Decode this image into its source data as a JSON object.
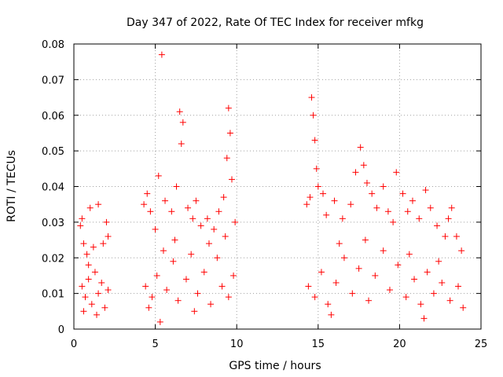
{
  "chart_data": {
    "type": "scatter",
    "title": "Day 347 of 2022, Rate Of TEC Index for receiver mfkg",
    "xlabel": "GPS time / hours",
    "ylabel": "ROTI / TECUs",
    "xlim": [
      0,
      25
    ],
    "ylim": [
      0,
      0.08
    ],
    "xticks": [
      "0",
      "5",
      "10",
      "15",
      "20",
      "25"
    ],
    "yticks": [
      "0",
      "0.01",
      "0.02",
      "0.03",
      "0.04",
      "0.05",
      "0.06",
      "0.07",
      "0.08"
    ],
    "grid": true,
    "marker": "+",
    "colors": {
      "points": "#ff0000"
    },
    "series": [
      {
        "values": [
          [
            0.4,
            0.029
          ],
          [
            0.5,
            0.031
          ],
          [
            0.6,
            0.024
          ],
          [
            0.8,
            0.021
          ],
          [
            0.9,
            0.018
          ],
          [
            1.0,
            0.034
          ],
          [
            1.2,
            0.023
          ],
          [
            1.5,
            0.035
          ],
          [
            1.8,
            0.024
          ],
          [
            2.0,
            0.03
          ],
          [
            2.1,
            0.026
          ],
          [
            0.5,
            0.012
          ],
          [
            0.7,
            0.009
          ],
          [
            0.9,
            0.014
          ],
          [
            1.1,
            0.007
          ],
          [
            1.3,
            0.016
          ],
          [
            1.5,
            0.01
          ],
          [
            1.7,
            0.013
          ],
          [
            1.9,
            0.006
          ],
          [
            2.1,
            0.011
          ],
          [
            0.6,
            0.005
          ],
          [
            1.4,
            0.004
          ],
          [
            4.3,
            0.035
          ],
          [
            4.5,
            0.038
          ],
          [
            4.7,
            0.033
          ],
          [
            5.0,
            0.028
          ],
          [
            5.2,
            0.043
          ],
          [
            5.4,
            0.077
          ],
          [
            5.6,
            0.036
          ],
          [
            6.0,
            0.033
          ],
          [
            6.3,
            0.04
          ],
          [
            6.5,
            0.061
          ],
          [
            6.6,
            0.052
          ],
          [
            6.7,
            0.058
          ],
          [
            7.0,
            0.034
          ],
          [
            7.3,
            0.031
          ],
          [
            7.5,
            0.036
          ],
          [
            7.8,
            0.029
          ],
          [
            8.2,
            0.031
          ],
          [
            8.6,
            0.028
          ],
          [
            8.9,
            0.033
          ],
          [
            9.2,
            0.037
          ],
          [
            9.4,
            0.048
          ],
          [
            9.5,
            0.062
          ],
          [
            9.6,
            0.055
          ],
          [
            9.7,
            0.042
          ],
          [
            9.9,
            0.03
          ],
          [
            4.4,
            0.012
          ],
          [
            4.8,
            0.009
          ],
          [
            5.1,
            0.015
          ],
          [
            5.3,
            0.002
          ],
          [
            5.7,
            0.011
          ],
          [
            6.1,
            0.019
          ],
          [
            6.4,
            0.008
          ],
          [
            6.9,
            0.014
          ],
          [
            7.2,
            0.021
          ],
          [
            7.6,
            0.01
          ],
          [
            8.0,
            0.016
          ],
          [
            8.4,
            0.007
          ],
          [
            8.8,
            0.02
          ],
          [
            9.1,
            0.012
          ],
          [
            9.5,
            0.009
          ],
          [
            9.8,
            0.015
          ],
          [
            7.4,
            0.005
          ],
          [
            8.3,
            0.024
          ],
          [
            6.2,
            0.025
          ],
          [
            5.5,
            0.022
          ],
          [
            9.3,
            0.026
          ],
          [
            4.6,
            0.006
          ],
          [
            14.3,
            0.035
          ],
          [
            14.5,
            0.037
          ],
          [
            14.6,
            0.065
          ],
          [
            14.7,
            0.06
          ],
          [
            14.8,
            0.053
          ],
          [
            14.9,
            0.045
          ],
          [
            15.0,
            0.04
          ],
          [
            15.3,
            0.038
          ],
          [
            15.5,
            0.032
          ],
          [
            16.0,
            0.036
          ],
          [
            16.5,
            0.031
          ],
          [
            17.0,
            0.035
          ],
          [
            17.3,
            0.044
          ],
          [
            17.6,
            0.051
          ],
          [
            17.8,
            0.046
          ],
          [
            18.0,
            0.041
          ],
          [
            18.3,
            0.038
          ],
          [
            18.6,
            0.034
          ],
          [
            19.0,
            0.04
          ],
          [
            19.3,
            0.033
          ],
          [
            19.6,
            0.03
          ],
          [
            19.8,
            0.044
          ],
          [
            20.2,
            0.038
          ],
          [
            20.5,
            0.033
          ],
          [
            20.8,
            0.036
          ],
          [
            21.2,
            0.031
          ],
          [
            21.6,
            0.039
          ],
          [
            21.9,
            0.034
          ],
          [
            22.3,
            0.029
          ],
          [
            22.8,
            0.026
          ],
          [
            23.0,
            0.031
          ],
          [
            23.2,
            0.034
          ],
          [
            23.5,
            0.026
          ],
          [
            23.8,
            0.022
          ],
          [
            14.4,
            0.012
          ],
          [
            14.8,
            0.009
          ],
          [
            15.2,
            0.016
          ],
          [
            15.6,
            0.007
          ],
          [
            16.1,
            0.013
          ],
          [
            16.6,
            0.02
          ],
          [
            17.1,
            0.01
          ],
          [
            17.5,
            0.017
          ],
          [
            18.1,
            0.008
          ],
          [
            18.5,
            0.015
          ],
          [
            19.0,
            0.022
          ],
          [
            19.4,
            0.011
          ],
          [
            19.9,
            0.018
          ],
          [
            20.4,
            0.009
          ],
          [
            20.9,
            0.014
          ],
          [
            21.3,
            0.007
          ],
          [
            21.7,
            0.016
          ],
          [
            22.1,
            0.01
          ],
          [
            22.6,
            0.013
          ],
          [
            23.1,
            0.008
          ],
          [
            23.6,
            0.012
          ],
          [
            23.9,
            0.006
          ],
          [
            16.3,
            0.024
          ],
          [
            17.9,
            0.025
          ],
          [
            20.6,
            0.021
          ],
          [
            22.4,
            0.019
          ],
          [
            15.8,
            0.004
          ],
          [
            21.5,
            0.003
          ]
        ]
      }
    ]
  }
}
